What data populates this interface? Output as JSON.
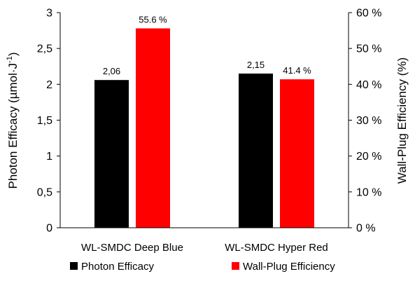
{
  "chart_data": {
    "type": "bar",
    "categories": [
      "WL-SMDC Deep Blue",
      "WL-SMDC Hyper Red"
    ],
    "series": [
      {
        "name": "Photon Efficacy",
        "axis": "left",
        "color": "#000000",
        "values": [
          2.06,
          2.15
        ],
        "labels": [
          "2,06",
          "2,15"
        ]
      },
      {
        "name": "Wall-Plug Efficiency",
        "axis": "right",
        "color": "#ff0000",
        "values": [
          55.6,
          41.4
        ],
        "labels": [
          "55.6 %",
          "41.4 %"
        ]
      }
    ],
    "ylabel": "Photon Efficacy (µmol·J",
    "ylabel_sup": "-1",
    "ylabel_close": ")",
    "ylim": [
      0,
      3
    ],
    "yticks": [
      0,
      0.5,
      1,
      1.5,
      2,
      2.5,
      3
    ],
    "yticklabels": [
      "0",
      "0,5",
      "1",
      "1,5",
      "2",
      "2,5",
      "3"
    ],
    "y2label": "Wall-Plug Efficiency (%)",
    "y2lim": [
      0,
      60
    ],
    "y2ticks": [
      0,
      10,
      20,
      30,
      40,
      50,
      60
    ],
    "y2ticklabels": [
      "0 %",
      "10 %",
      "20 %",
      "30 %",
      "40 %",
      "50 %",
      "60 %"
    ],
    "grid": false,
    "legend_position": "bottom"
  }
}
